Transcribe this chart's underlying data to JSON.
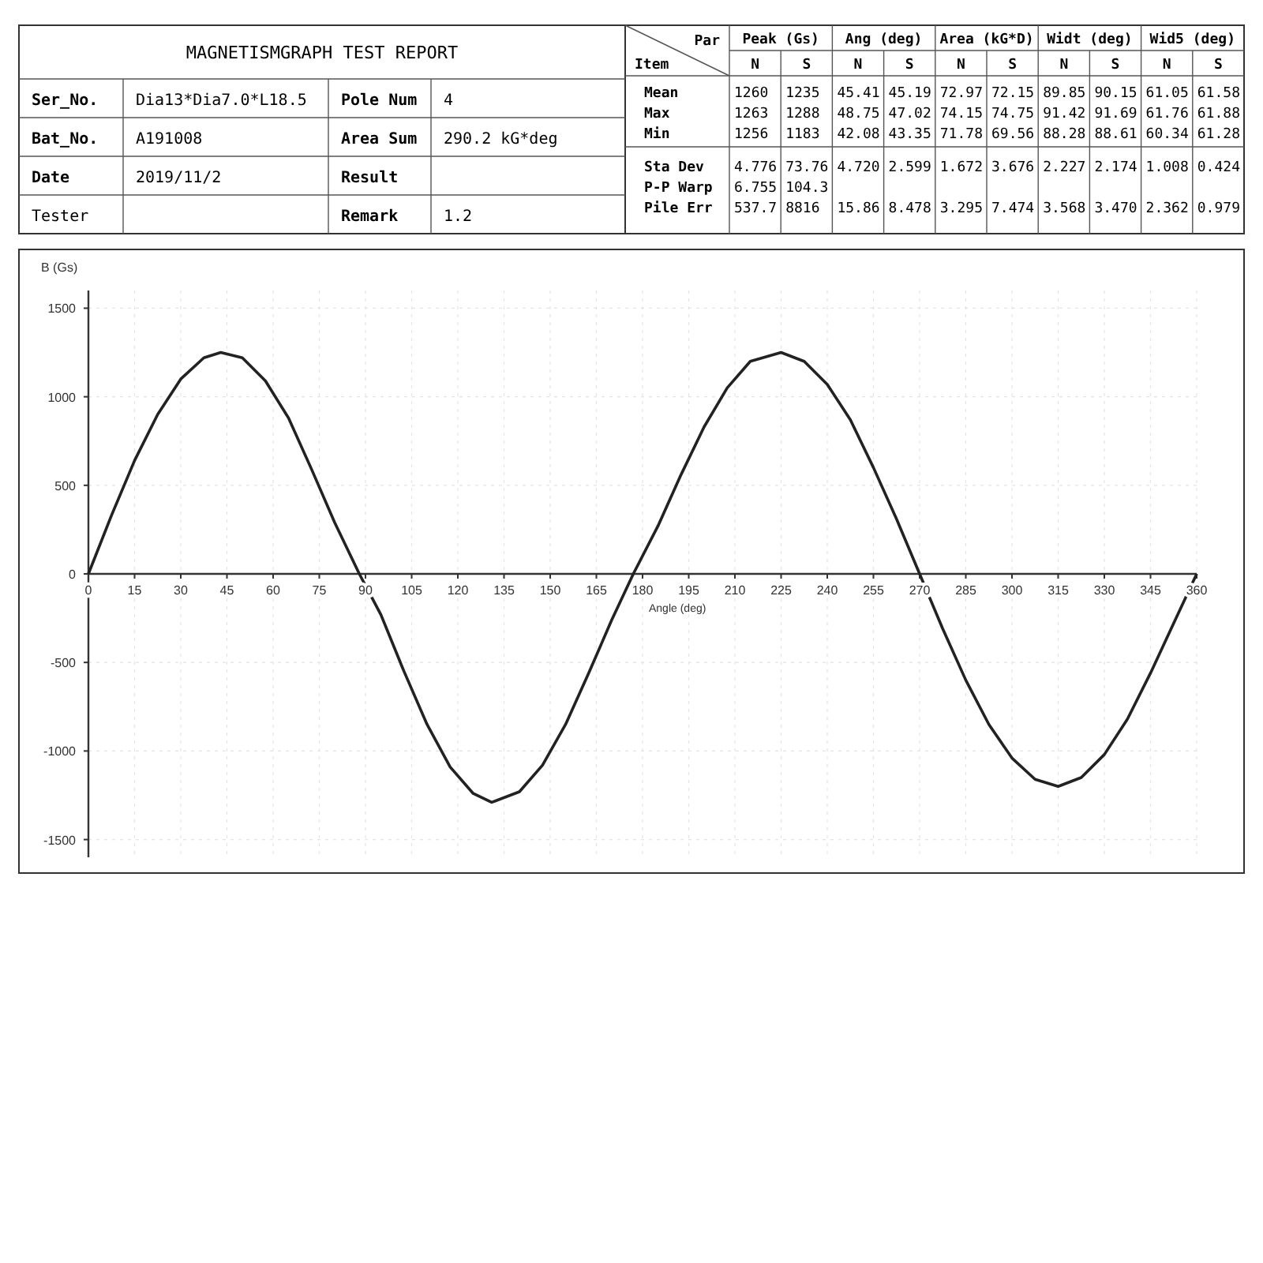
{
  "chart_data": {
    "type": "line",
    "title": "MAGNETISMGRAPH TEST REPORT",
    "xlabel": "Angle (deg)",
    "ylabel": "B (Gs)",
    "annotations": [
      "Ser_No.",
      "Dia13*Dia7.0*L18.5",
      "Pole Num",
      "4",
      "Bat_No.",
      "A191008",
      "Area Sum",
      "290.2 kG*deg",
      "Date",
      "2019/11/2",
      "Result",
      "Tester",
      "Remark",
      "1.2",
      "Par",
      "Item",
      "Peak (Gs)",
      "Ang (deg)",
      "Area (kG*D)",
      "Widt (deg)",
      "Wid5 (deg)",
      "N",
      "S",
      "N",
      "S",
      "N",
      "S",
      "N",
      "S",
      "N",
      "S",
      "Mean",
      "1260",
      "1235",
      "45.41",
      "45.19",
      "72.97",
      "72.15",
      "89.85",
      "90.15",
      "61.05",
      "61.58",
      "Max",
      "1263",
      "1288",
      "48.75",
      "47.02",
      "74.15",
      "74.75",
      "91.42",
      "91.69",
      "61.76",
      "61.88",
      "Min",
      "1256",
      "1183",
      "42.08",
      "43.35",
      "71.78",
      "69.56",
      "88.28",
      "88.61",
      "60.34",
      "61.28",
      "Sta Dev",
      "4.776",
      "73.76",
      "4.720",
      "2.599",
      "1.672",
      "3.676",
      "2.227",
      "2.174",
      "1.008",
      "0.424",
      "P-P Warp",
      "6.755",
      "104.3",
      "Pile Err",
      "537.7",
      "8816",
      "15.86",
      "8.478",
      "3.295",
      "7.474",
      "3.568",
      "3.470",
      "2.362",
      "0.979"
    ],
    "x": [
      0,
      7.5,
      15,
      22.5,
      30,
      37.5,
      43,
      50,
      57.5,
      65,
      72.5,
      80,
      88,
      95,
      102.5,
      110,
      117.5,
      125,
      131,
      140,
      147.5,
      155,
      162.5,
      170,
      177,
      185,
      192.5,
      200,
      207.5,
      215,
      225,
      232.5,
      240,
      247.5,
      255,
      262.5,
      270,
      277.5,
      285,
      292.5,
      300,
      307.5,
      315,
      322.5,
      330,
      337.5,
      345,
      352.5,
      360
    ],
    "series": [
      {
        "color": "#222222",
        "values": [
          0,
          330,
          640,
          900,
          1100,
          1220,
          1250,
          1220,
          1090,
          880,
          590,
          290,
          0,
          -230,
          -550,
          -850,
          -1090,
          -1240,
          -1290,
          -1230,
          -1080,
          -850,
          -560,
          -260,
          0,
          270,
          560,
          830,
          1050,
          1200,
          1250,
          1200,
          1070,
          870,
          600,
          310,
          0,
          -310,
          -600,
          -850,
          -1040,
          -1160,
          -1200,
          -1150,
          -1020,
          -820,
          -560,
          -280,
          0
        ]
      }
    ],
    "xlim": [
      0,
      360
    ],
    "ylim": [
      -1600,
      1600
    ],
    "xticks": [
      0,
      15,
      30,
      45,
      60,
      75,
      90,
      105,
      120,
      135,
      150,
      165,
      180,
      195,
      210,
      225,
      240,
      255,
      270,
      285,
      300,
      315,
      330,
      345,
      360
    ],
    "yticks": [
      -1500,
      -1000,
      -500,
      0,
      500,
      1000,
      1500
    ],
    "grid": true,
    "marker": "none",
    "line_style": "solid"
  }
}
